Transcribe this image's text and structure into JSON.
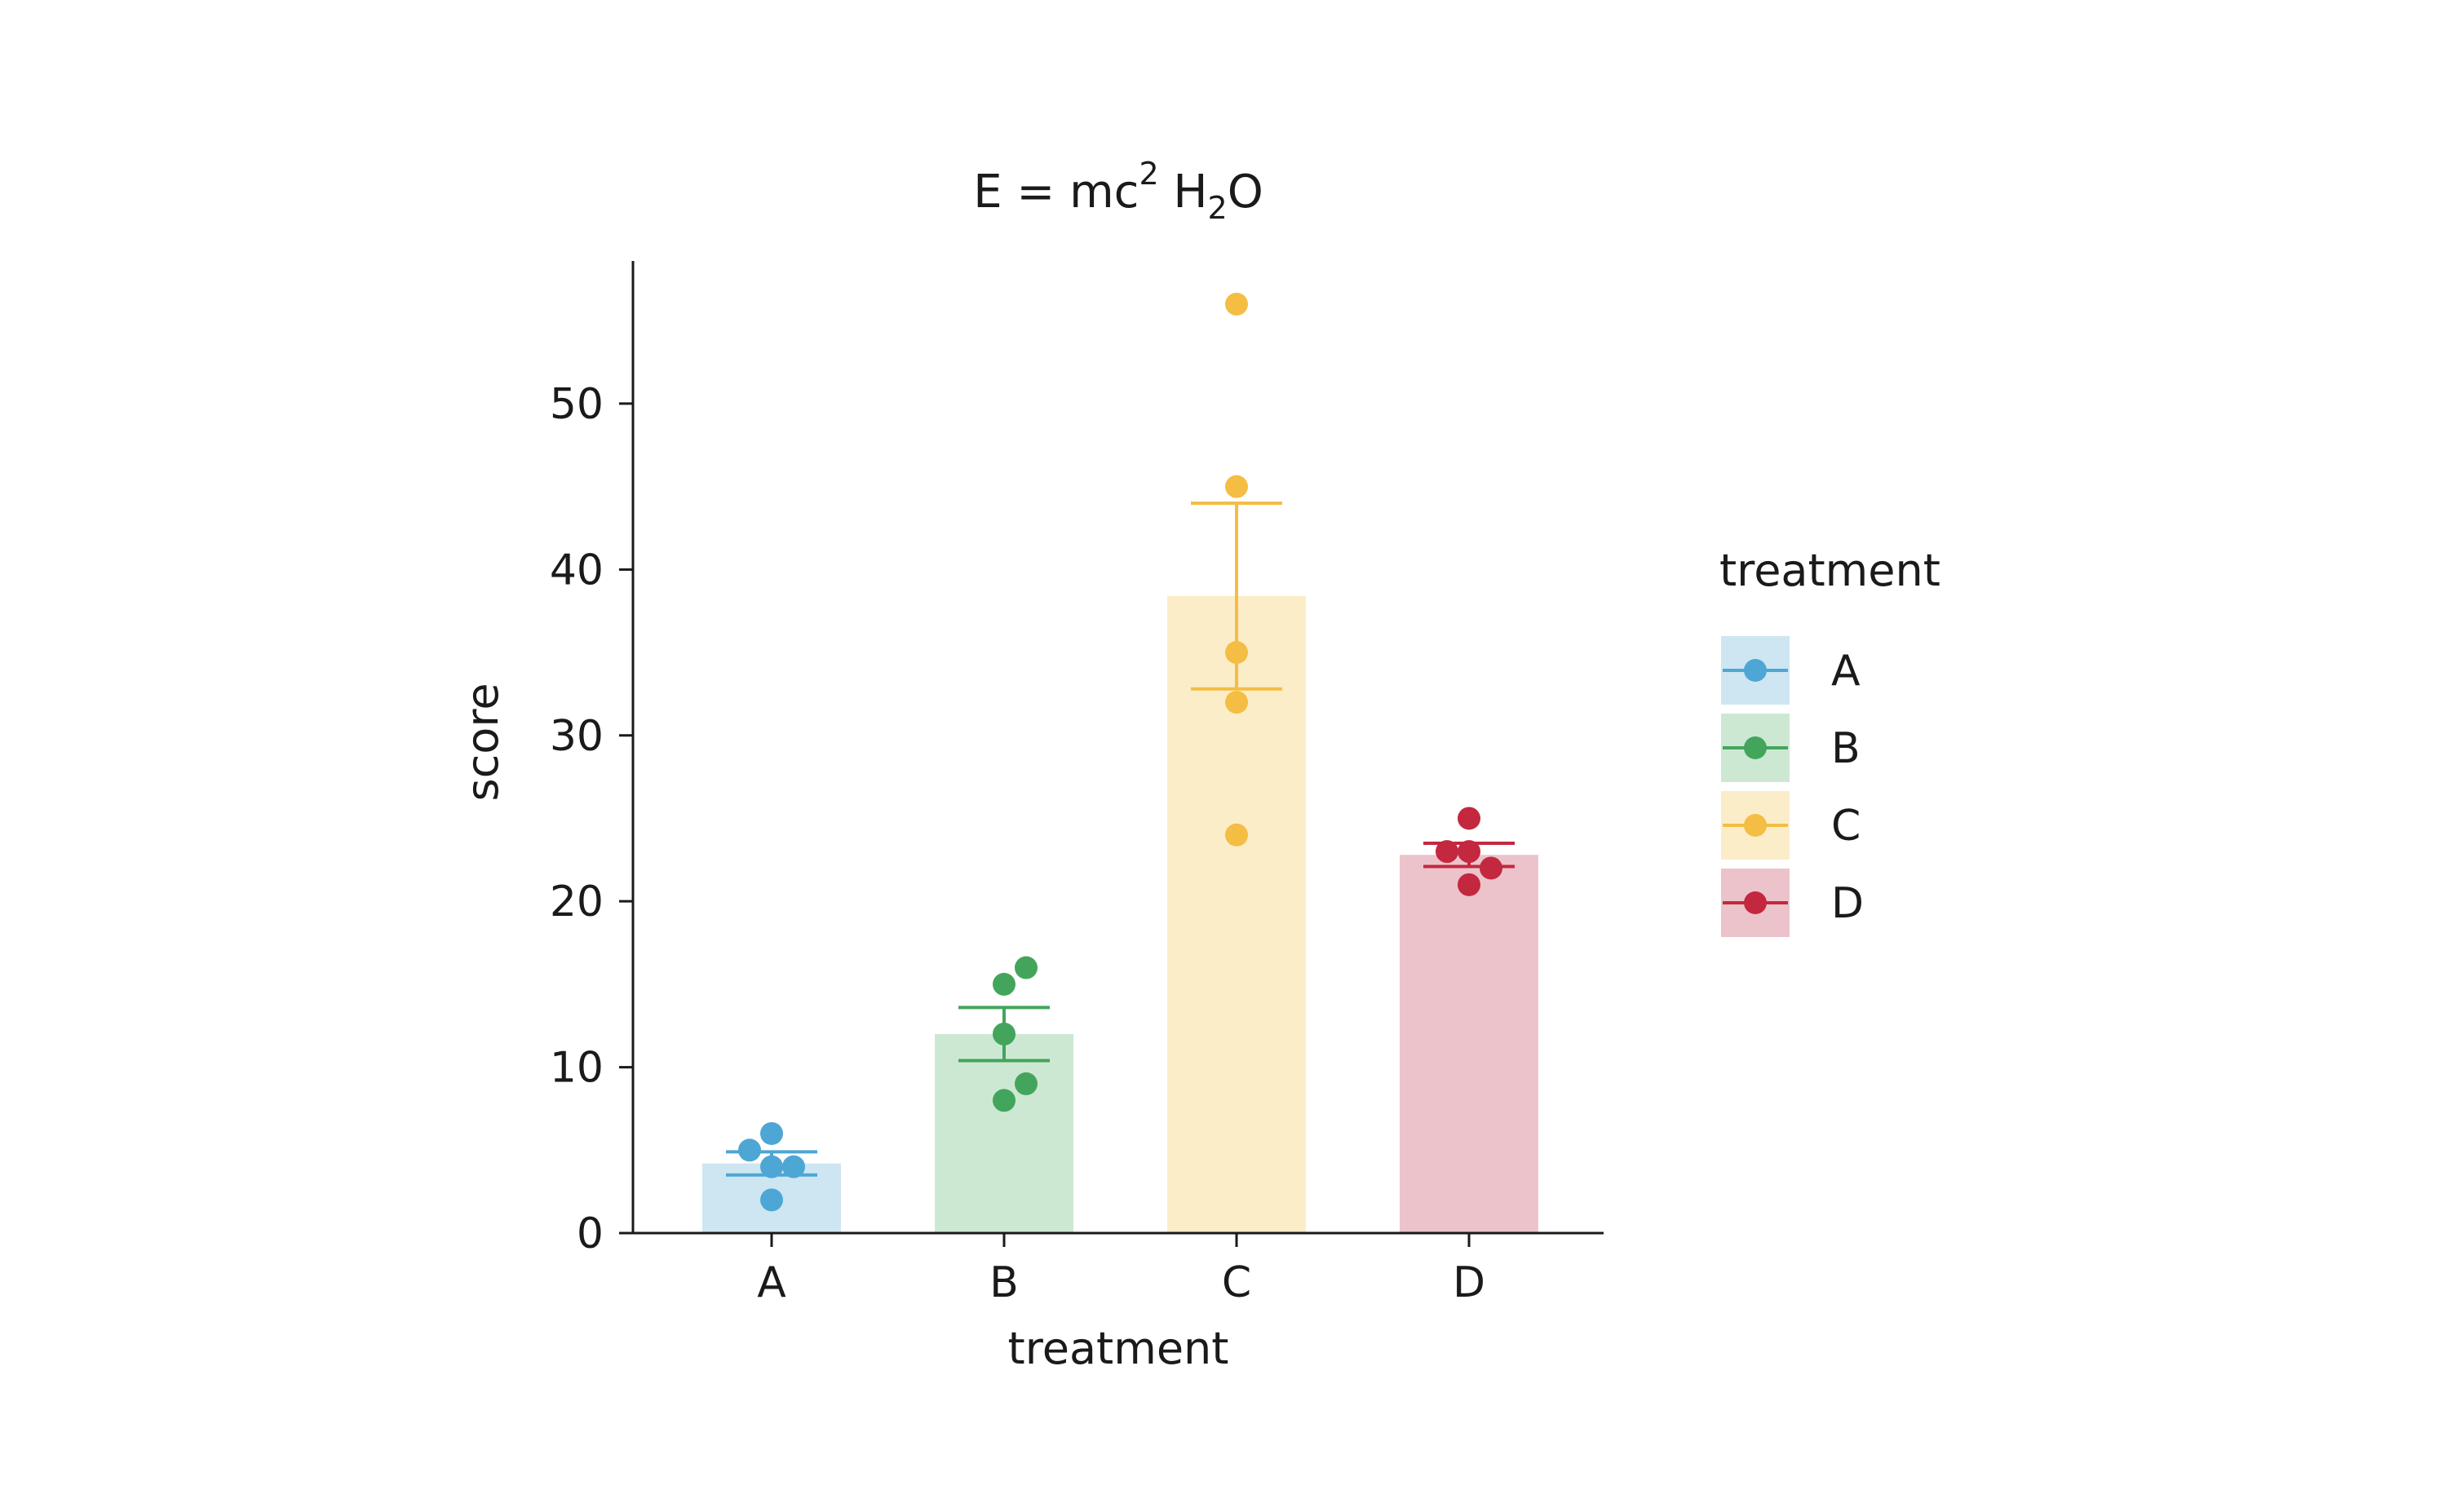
{
  "chart_data": {
    "type": "bar",
    "title": {
      "main": "E = mc",
      "sup": "2",
      "after_sup": " H",
      "sub": "2",
      "end": "O"
    },
    "xlabel": "treatment",
    "ylabel": "score",
    "categories": [
      "A",
      "B",
      "C",
      "D"
    ],
    "means": [
      4.2,
      12.0,
      38.4,
      22.8
    ],
    "error_bars": [
      {
        "low": 3.5,
        "high": 4.9
      },
      {
        "low": 10.4,
        "high": 13.6
      },
      {
        "low": 32.8,
        "high": 44.0
      },
      {
        "low": 22.1,
        "high": 23.5
      }
    ],
    "points": [
      [
        {
          "y": 6,
          "offset": 0
        },
        {
          "y": 5,
          "offset": -1
        },
        {
          "y": 4,
          "offset": 0
        },
        {
          "y": 4,
          "offset": 1
        },
        {
          "y": 2,
          "offset": 0
        }
      ],
      [
        {
          "y": 16,
          "offset": 1
        },
        {
          "y": 15,
          "offset": 0
        },
        {
          "y": 12,
          "offset": 0
        },
        {
          "y": 9,
          "offset": 1
        },
        {
          "y": 8,
          "offset": 0
        }
      ],
      [
        {
          "y": 56,
          "offset": 0
        },
        {
          "y": 45,
          "offset": 0
        },
        {
          "y": 35,
          "offset": 0
        },
        {
          "y": 32,
          "offset": 0
        },
        {
          "y": 24,
          "offset": 0
        }
      ],
      [
        {
          "y": 25,
          "offset": 0
        },
        {
          "y": 23,
          "offset": -1
        },
        {
          "y": 23,
          "offset": 0
        },
        {
          "y": 22,
          "offset": 1
        },
        {
          "y": 21,
          "offset": 0
        }
      ]
    ],
    "yticks": [
      0,
      10,
      20,
      30,
      40,
      50
    ],
    "ylim": [
      0,
      58.6
    ],
    "grid": false,
    "legend": {
      "title": "treatment",
      "placement": "right",
      "labels": [
        "A",
        "B",
        "C",
        "D"
      ]
    },
    "colors": {
      "point": [
        "#4ea6d4",
        "#43a55c",
        "#f4bd43",
        "#c3283f"
      ],
      "bar": [
        "#cde6f2",
        "#cce8d3",
        "#fcedc9",
        "#ecc3cb"
      ]
    }
  }
}
